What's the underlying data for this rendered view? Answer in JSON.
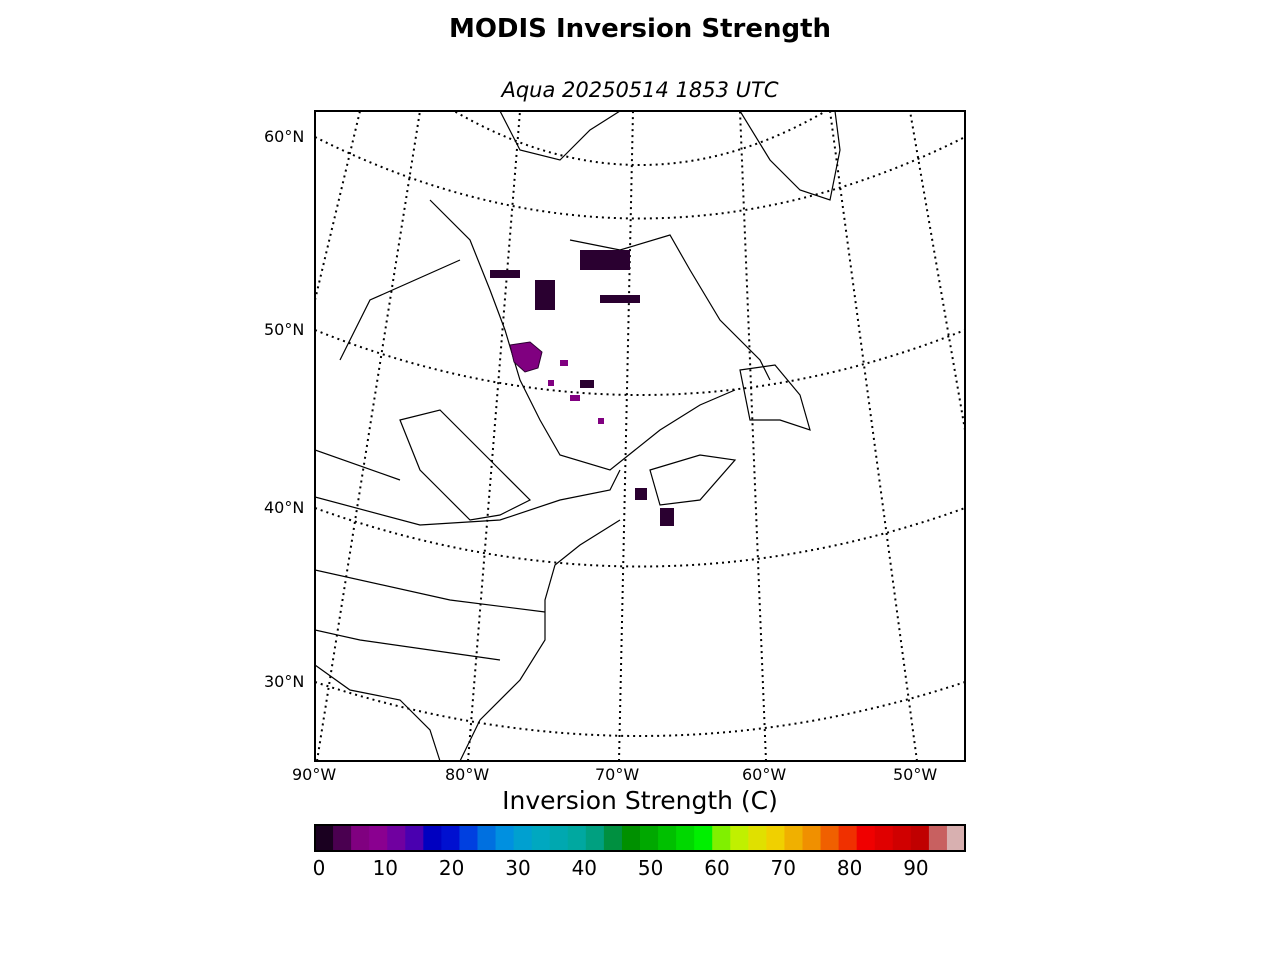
{
  "title": "MODIS Inversion Strength",
  "subtitle": "Aqua 20250514 1853 UTC",
  "map": {
    "type": "map",
    "projection": "conic",
    "lat_labels": [
      "60°N",
      "50°N",
      "40°N",
      "30°N"
    ],
    "lon_labels": [
      "90°W",
      "80°W",
      "70°W",
      "60°W",
      "50°W"
    ],
    "gridlines": "dotted",
    "data_colors": {
      "low": "#2a0030",
      "mid": "#800080"
    }
  },
  "colorbar": {
    "label": "Inversion Strength (C)",
    "ticks": [
      "0",
      "10",
      "20",
      "30",
      "40",
      "50",
      "60",
      "70",
      "80",
      "90"
    ],
    "min": 0,
    "max": 98,
    "colors": [
      "#1a0020",
      "#4a0050",
      "#800080",
      "#8a0090",
      "#7000a0",
      "#4a00b0",
      "#0000c0",
      "#0010d0",
      "#0040e0",
      "#0070e0",
      "#0090e0",
      "#00a0d0",
      "#00a8c0",
      "#00a8b0",
      "#00a8a0",
      "#00a080",
      "#009040",
      "#009000",
      "#00a800",
      "#00c000",
      "#00d800",
      "#00f000",
      "#80f000",
      "#c0f000",
      "#e0e000",
      "#f0d000",
      "#f0b000",
      "#f09000",
      "#f06000",
      "#f03000",
      "#f00000",
      "#e00000",
      "#d00000",
      "#c00000",
      "#c86060",
      "#d8b0b0"
    ]
  }
}
